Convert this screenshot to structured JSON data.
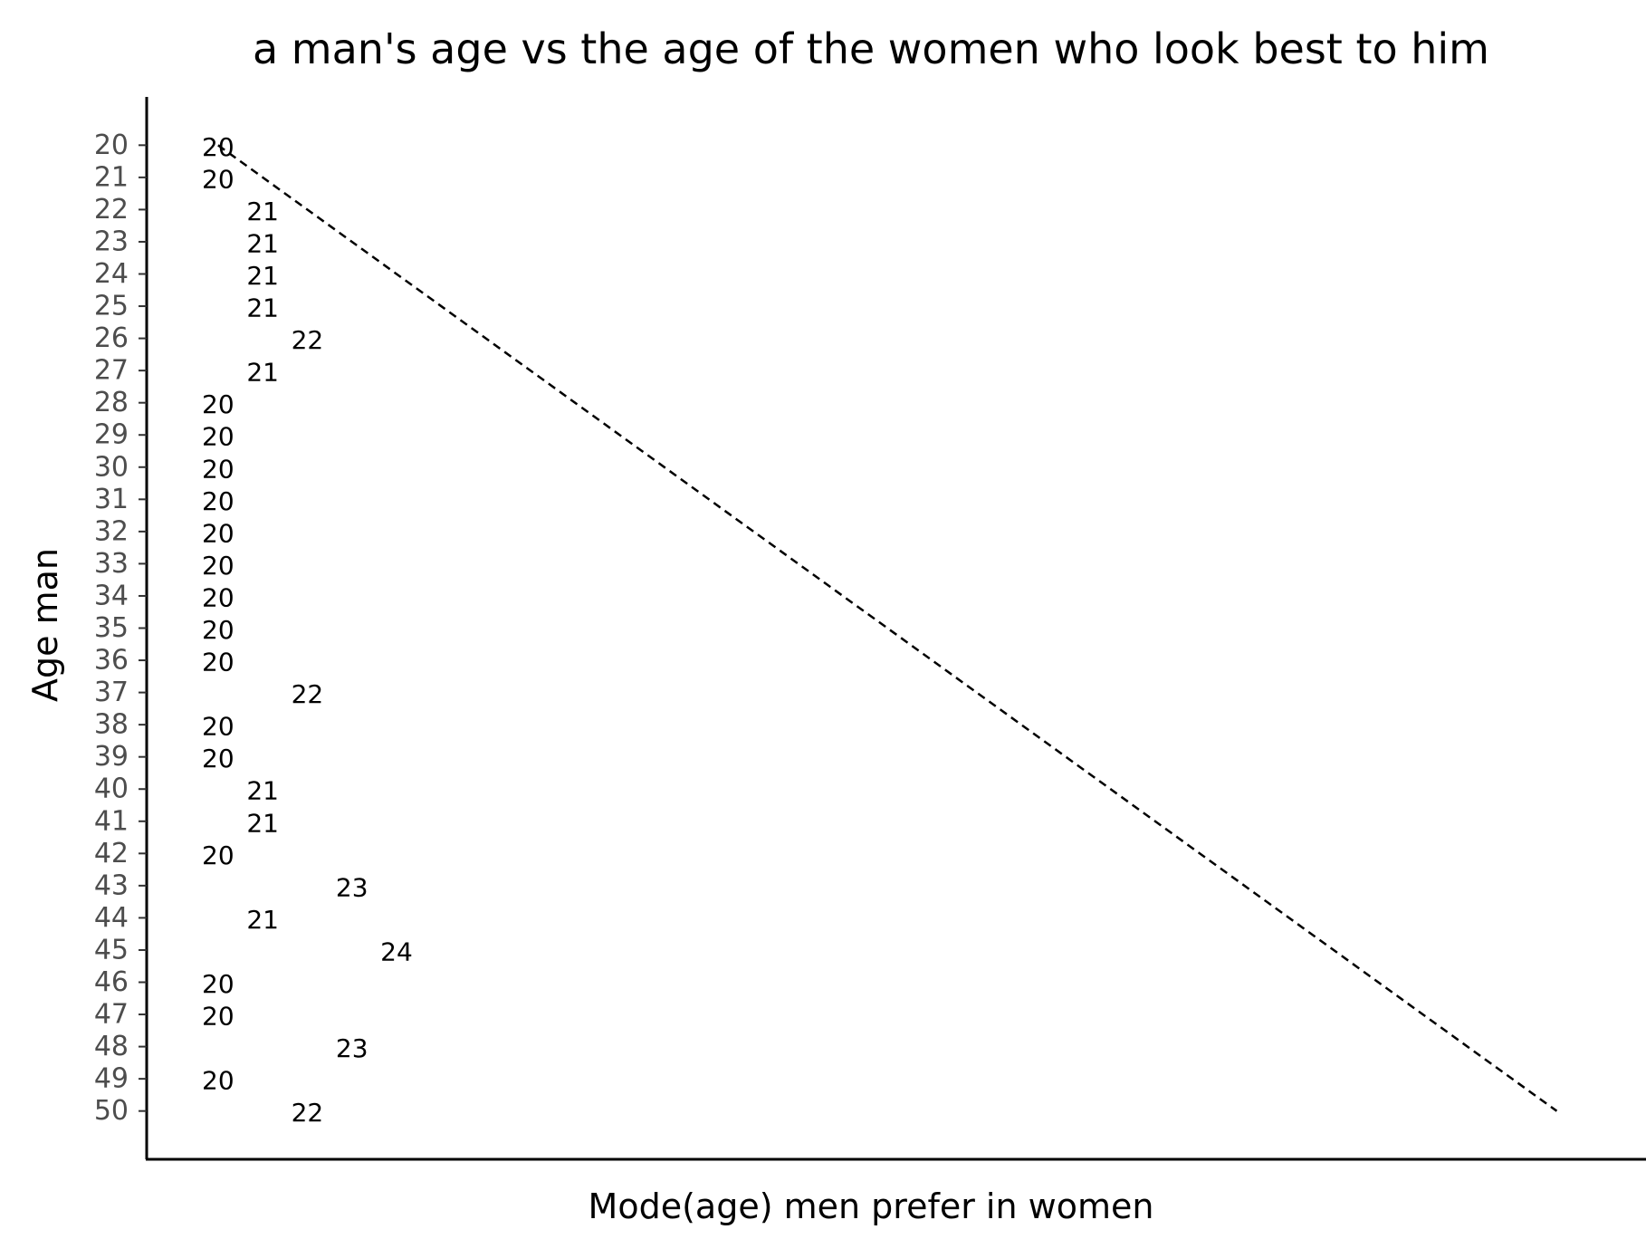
{
  "chart_data": {
    "type": "scatter",
    "title": "a man's age vs the age of the women who look best to him",
    "xlabel": "Mode(age) men prefer in women",
    "ylabel": "Age man",
    "y": [
      20,
      21,
      22,
      23,
      24,
      25,
      26,
      27,
      28,
      29,
      30,
      31,
      32,
      33,
      34,
      35,
      36,
      37,
      38,
      39,
      40,
      41,
      42,
      43,
      44,
      45,
      46,
      47,
      48,
      49,
      50
    ],
    "x": [
      20,
      20,
      21,
      21,
      21,
      21,
      22,
      21,
      20,
      20,
      20,
      20,
      20,
      20,
      20,
      20,
      20,
      22,
      20,
      20,
      21,
      21,
      20,
      23,
      21,
      24,
      20,
      20,
      23,
      20,
      22
    ],
    "xlim": [
      18.4,
      52
    ],
    "ylim": [
      51.5,
      18.5
    ],
    "reference_line": {
      "style": "dashed",
      "from": [
        20,
        20
      ],
      "to": [
        50,
        50
      ]
    },
    "grid": false,
    "legend": false
  }
}
